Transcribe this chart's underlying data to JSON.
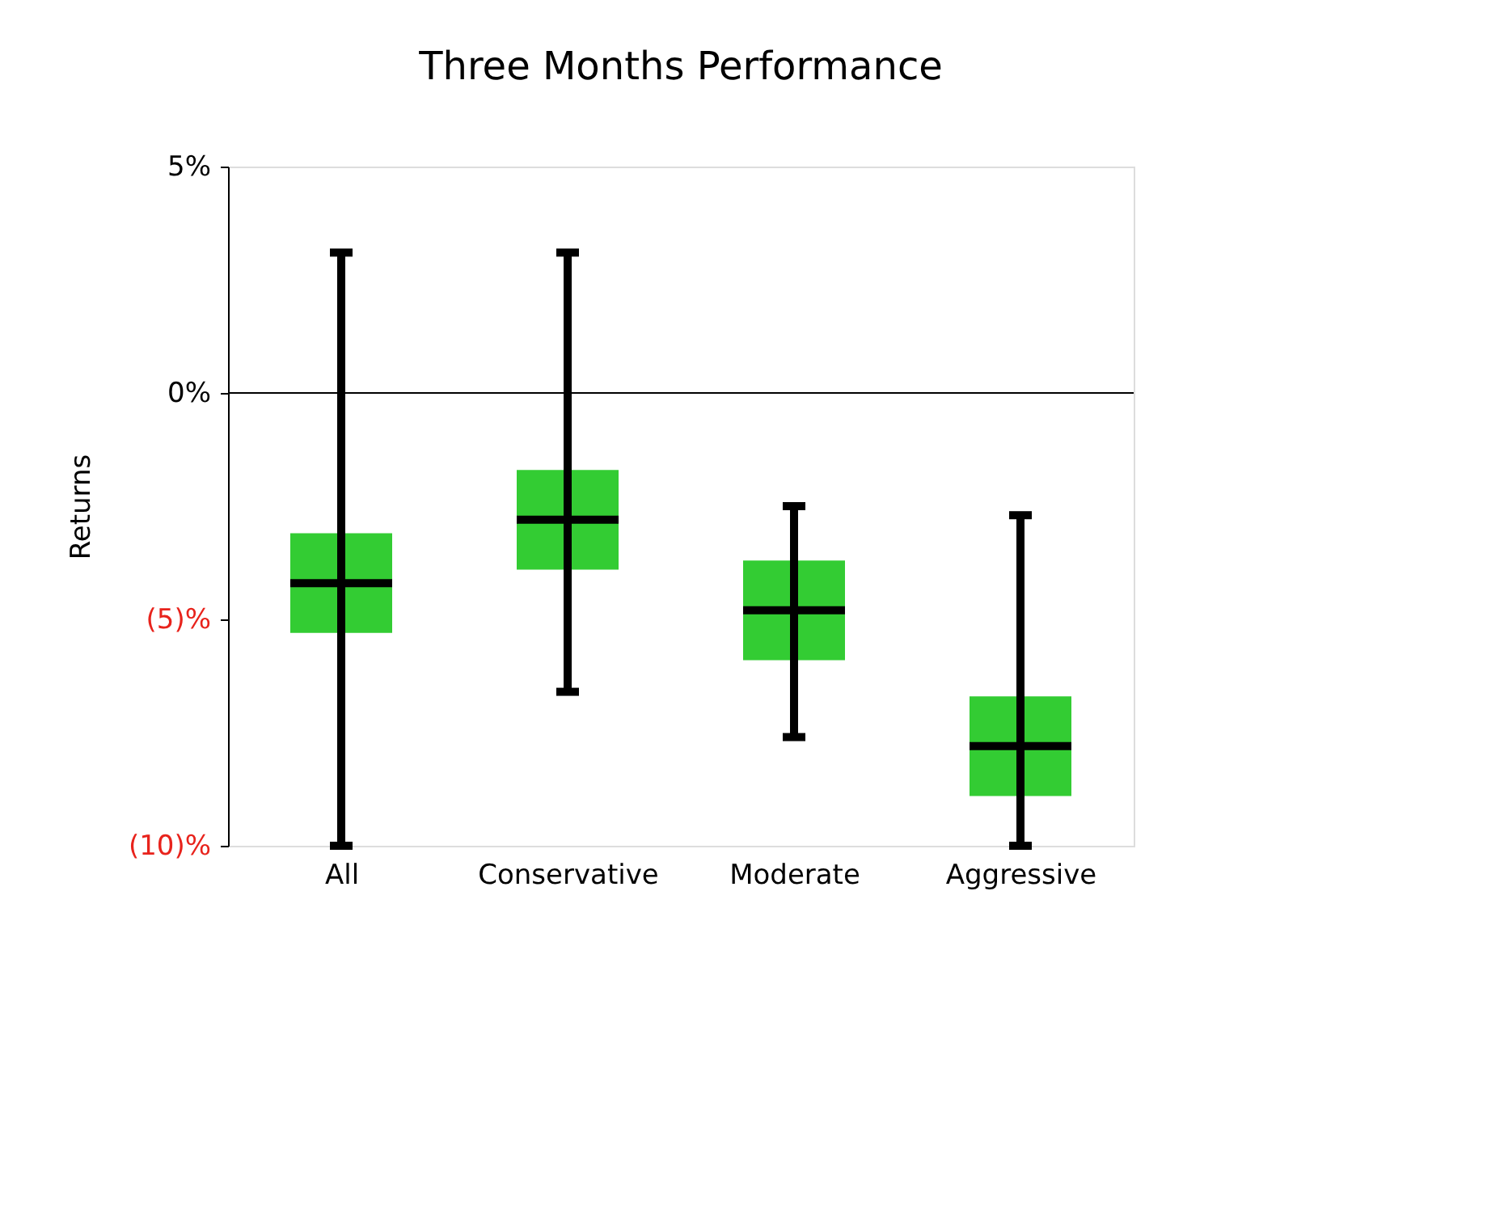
{
  "chart_data": {
    "type": "box",
    "title": "Three Months Performance",
    "ylabel": "Returns",
    "categories": [
      "All",
      "Conservative",
      "Moderate",
      "Aggressive"
    ],
    "series": [
      {
        "color": "#33cc33",
        "boxes": [
          {
            "low": -10,
            "q1": -5.3,
            "median": -4.2,
            "q3": -3.1,
            "high": 3.1
          },
          {
            "low": -6.6,
            "q1": -3.9,
            "median": -2.8,
            "q3": -1.7,
            "high": 3.1
          },
          {
            "low": -7.6,
            "q1": -5.9,
            "median": -4.8,
            "q3": -3.7,
            "high": -2.5
          },
          {
            "low": -10,
            "q1": -8.9,
            "median": -7.8,
            "q3": -6.7,
            "high": -2.7
          }
        ]
      }
    ],
    "ylim": [
      -10,
      5
    ],
    "yticks": [
      {
        "value": 5,
        "label": "5%"
      },
      {
        "value": 0,
        "label": "0%"
      },
      {
        "value": -5,
        "label": "(5)%"
      },
      {
        "value": -10,
        "label": "(10)%"
      }
    ],
    "ref_lines": [
      {
        "axis": "y",
        "value": 0,
        "color": "#000000"
      }
    ],
    "grid": false
  }
}
